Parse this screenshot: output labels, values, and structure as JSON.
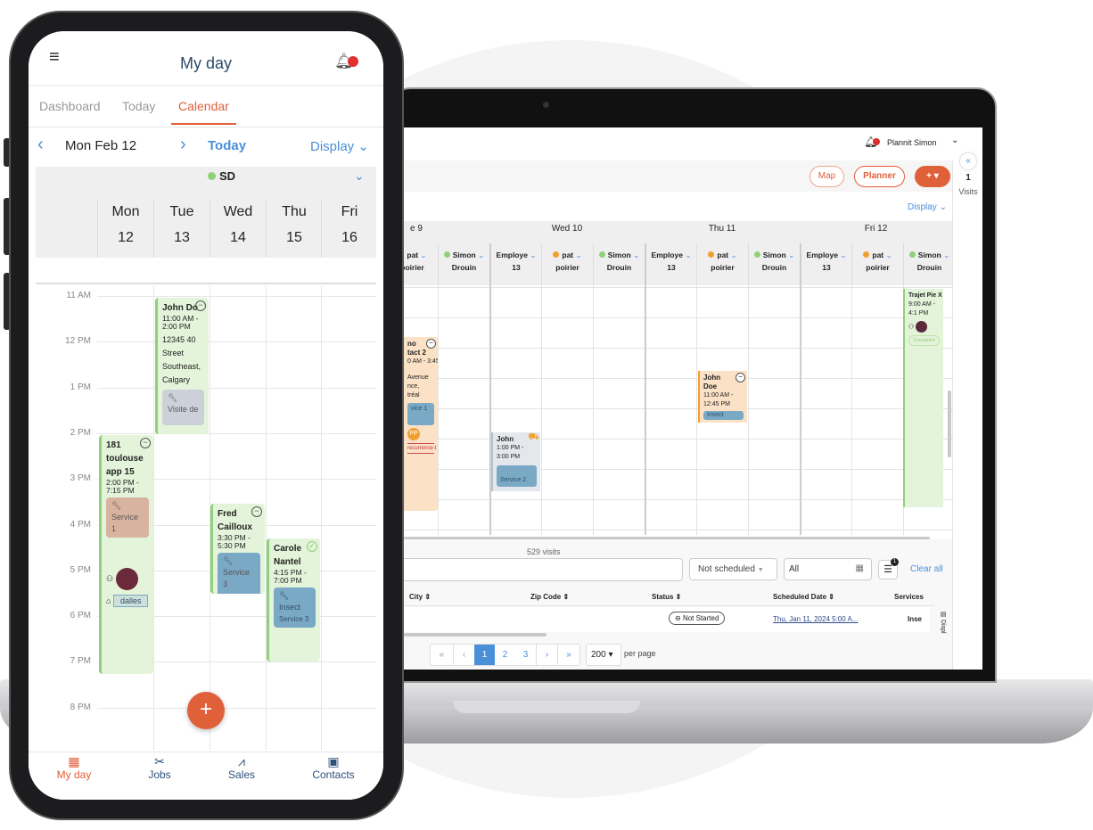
{
  "colors": {
    "accent": "#e0603a",
    "link": "#4a90d9",
    "title": "#2d4a6b",
    "event_green": "#e3f4da",
    "event_orange": "#fbe1c5",
    "service_blue": "#7aa9c6"
  },
  "laptop": {
    "topbar": {
      "user": "Plannit Simon",
      "icon": "bell-icon"
    },
    "toolbar": {
      "map": "Map",
      "planner": "Planner",
      "add": "+ ▾"
    },
    "rail": {
      "count": "1",
      "label": "Visits"
    },
    "display": "Display",
    "days": [
      "e  9",
      "Wed  10",
      "Thu  11",
      "Fri  12"
    ],
    "columns": [
      {
        "name1": "pat",
        "name2": "poirier",
        "dot": "#f0a030"
      },
      {
        "name1": "Simon",
        "name2": "Drouin",
        "dot": "#8fd07a"
      },
      {
        "name1": "Employe",
        "name2": "13",
        "dot": ""
      },
      {
        "name1": "pat",
        "name2": "poirier",
        "dot": "#f0a030"
      },
      {
        "name1": "Simon",
        "name2": "Drouin",
        "dot": "#8fd07a"
      },
      {
        "name1": "Employe",
        "name2": "13",
        "dot": ""
      },
      {
        "name1": "pat",
        "name2": "poirier",
        "dot": "#f0a030"
      },
      {
        "name1": "Simon",
        "name2": "Drouin",
        "dot": "#8fd07a"
      },
      {
        "name1": "Employe",
        "name2": "13",
        "dot": ""
      },
      {
        "name1": "pat",
        "name2": "poirier",
        "dot": "#f0a030"
      },
      {
        "name1": "Simon",
        "name2": "Drouin",
        "dot": "#8fd07a"
      }
    ],
    "events": {
      "e1": {
        "title": "no\ntact 2",
        "time": "0 AM - 3:45",
        "address": "Avenue\nnce,\ntréal",
        "service": "vice 1",
        "badge": "PP",
        "tag": "recurrence-t"
      },
      "e2": {
        "title": "John",
        "time": "1:00 PM - 3:00 PM",
        "service": "Service 2"
      },
      "e3": {
        "title": "John Doe",
        "time": "11:00 AM - 12:45 PM",
        "service": "Insect"
      },
      "e4": {
        "title": "Trajet Pie X",
        "time": "9:00 AM - 4:1 PM",
        "status": "Completed"
      }
    },
    "visits_count": "529 visits",
    "filters": {
      "schedule": "Not scheduled",
      "date": "All",
      "filter_badge": "1",
      "clear": "Clear all"
    },
    "table": {
      "headers": [
        "City",
        "Zip Code",
        "Status",
        "Scheduled Date",
        "Services"
      ],
      "row": {
        "status": "Not Started",
        "date": "Thu, Jan 11, 2024 5:00 A...",
        "services": "Inse"
      },
      "display": "Displ"
    },
    "pagination": {
      "pages": [
        "1",
        "2",
        "3"
      ],
      "current": "1",
      "per_page_value": "200",
      "per_page_label": "per page"
    }
  },
  "phone": {
    "title": "My day",
    "tabs": [
      "Dashboard",
      "Today",
      "Calendar"
    ],
    "active_tab": "Calendar",
    "date": "Mon Feb 12",
    "today": "Today",
    "display": "Display",
    "user": "SD",
    "days": [
      {
        "d": "Mon",
        "n": "12"
      },
      {
        "d": "Tue",
        "n": "13"
      },
      {
        "d": "Wed",
        "n": "14"
      },
      {
        "d": "Thu",
        "n": "15"
      },
      {
        "d": "Fri",
        "n": "16"
      }
    ],
    "hours": [
      "11 AM",
      "12 PM",
      "1 PM",
      "2 PM",
      "3 PM",
      "4 PM",
      "5 PM",
      "6 PM",
      "7 PM",
      "8 PM"
    ],
    "events": {
      "john": {
        "title": "John Do",
        "time": "11:00 AM - 2:00 PM",
        "address": "12345 40 Street Southeast, Calgary",
        "service": "Visite de"
      },
      "toulouse": {
        "title": "181 toulouse app 15",
        "time": "2:00 PM - 7:15 PM",
        "service": "Service 1",
        "tag": "dalles"
      },
      "fred": {
        "title": "Fred Cailloux",
        "time": "3:30 PM - 5:30 PM",
        "service": "Service 3"
      },
      "carole": {
        "title": "Carole Nantel",
        "time": "4:15 PM - 7:00 PM",
        "service": "Insect",
        "service2": "Service 3"
      }
    },
    "nav": [
      "My day",
      "Jobs",
      "Sales",
      "Contacts"
    ],
    "fab": "+"
  }
}
